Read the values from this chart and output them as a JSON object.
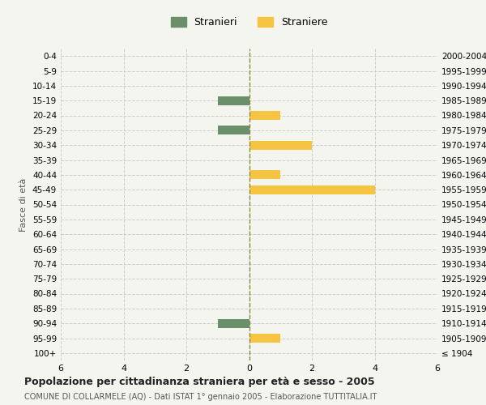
{
  "age_groups": [
    "100+",
    "95-99",
    "90-94",
    "85-89",
    "80-84",
    "75-79",
    "70-74",
    "65-69",
    "60-64",
    "55-59",
    "50-54",
    "45-49",
    "40-44",
    "35-39",
    "30-34",
    "25-29",
    "20-24",
    "15-19",
    "10-14",
    "5-9",
    "0-4"
  ],
  "birth_years": [
    "≤ 1904",
    "1905-1909",
    "1910-1914",
    "1915-1919",
    "1920-1924",
    "1925-1929",
    "1930-1934",
    "1935-1939",
    "1940-1944",
    "1945-1949",
    "1950-1954",
    "1955-1959",
    "1960-1964",
    "1965-1969",
    "1970-1974",
    "1975-1979",
    "1980-1984",
    "1985-1989",
    "1990-1994",
    "1995-1999",
    "2000-2004"
  ],
  "males": [
    0,
    0,
    1,
    0,
    0,
    0,
    0,
    0,
    0,
    0,
    0,
    0,
    0,
    0,
    0,
    1,
    0,
    1,
    0,
    0,
    0
  ],
  "females": [
    0,
    1,
    0,
    0,
    0,
    0,
    0,
    0,
    0,
    0,
    0,
    4,
    1,
    0,
    2,
    0,
    1,
    0,
    0,
    0,
    0
  ],
  "male_color": "#6b8e6b",
  "female_color": "#f5c542",
  "xlim": 6,
  "title": "Popolazione per cittadinanza straniera per età e sesso - 2005",
  "subtitle": "COMUNE DI COLLARMELE (AQ) - Dati ISTAT 1° gennaio 2005 - Elaborazione TUTTITALIA.IT",
  "y_left_label": "Fasce di età",
  "legend_male": "Stranieri",
  "legend_female": "Straniere",
  "background_color": "#f5f5f0",
  "grid_color": "#cccccc"
}
